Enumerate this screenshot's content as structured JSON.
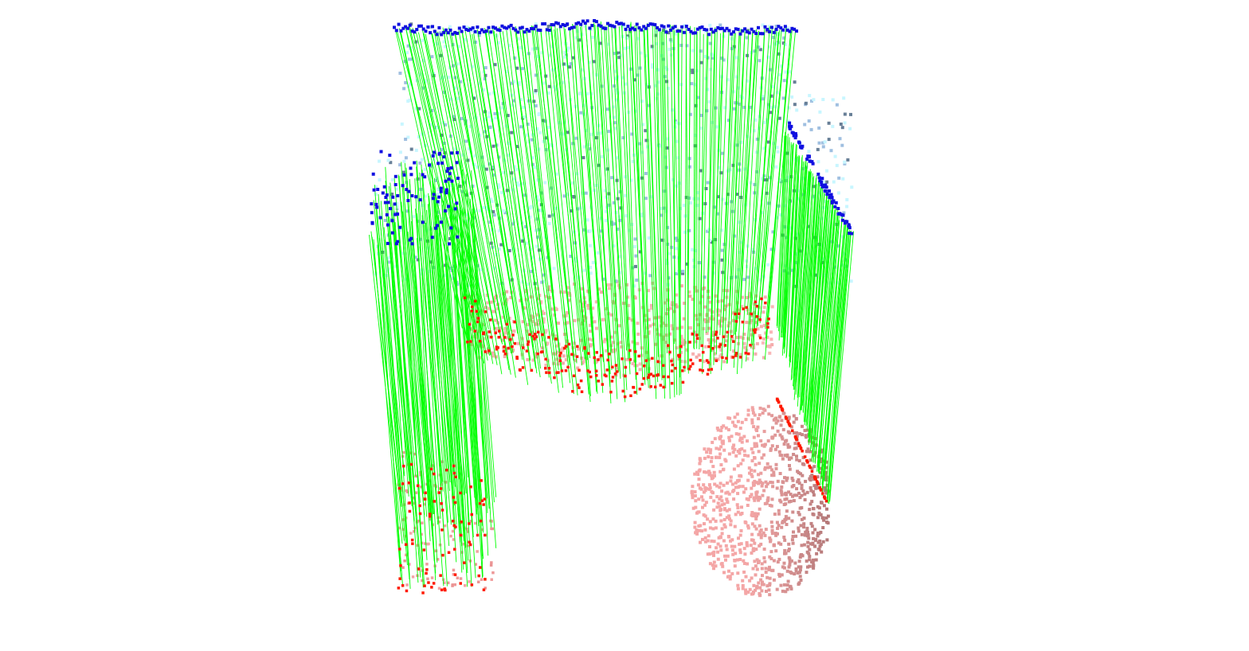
{
  "viewer": {
    "background_color": "#ffffff"
  },
  "scene": {
    "source_cloud_color": "#3a5cff",
    "source_cloud_shade_color": "#9fbfe0",
    "source_cloud_light_color": "#c8f6ff",
    "target_cloud_color": "#f4a6a6",
    "target_keypoint_color": "#ff1a00",
    "correspondence_line_color": "#00ff00",
    "source_keypoint_color": "#1010e0"
  }
}
